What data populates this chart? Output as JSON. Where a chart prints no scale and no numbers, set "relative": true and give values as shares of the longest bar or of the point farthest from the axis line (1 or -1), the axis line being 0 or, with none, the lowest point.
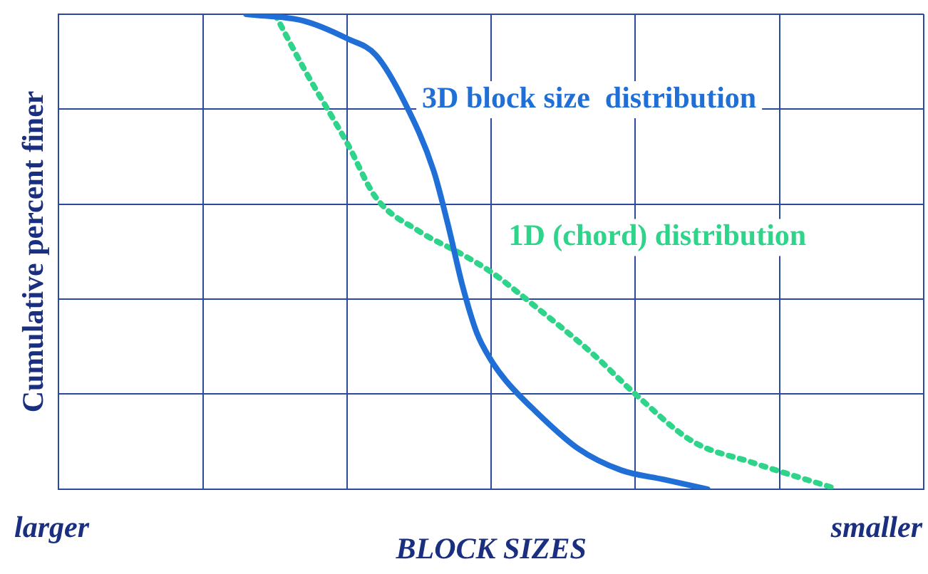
{
  "chart_data": {
    "type": "line",
    "relative": true,
    "xlabel": "BLOCK SIZES",
    "ylabel": "Cumulative percent finer",
    "annotations": [
      "larger",
      "smaller"
    ],
    "grid": true,
    "legend": false,
    "marker": "none",
    "categories": [
      null,
      null,
      null,
      null,
      null,
      null,
      null,
      null,
      null,
      null,
      null,
      null,
      null,
      null,
      null,
      null,
      null,
      null,
      null,
      null,
      null,
      null,
      null,
      null,
      null,
      null,
      null,
      null,
      null,
      null,
      null,
      null,
      null,
      null,
      null,
      null,
      null,
      null,
      null,
      null,
      null,
      null,
      null,
      null,
      null,
      null,
      null,
      null,
      null,
      null,
      null,
      null,
      null,
      null,
      null,
      null,
      null,
      null,
      null,
      null,
      null
    ],
    "series": [
      {
        "name": "3D block size  distribution",
        "color": "#1f6fd6",
        "line_style": "solid",
        "values": [
          null,
          null,
          null,
          null,
          null,
          null,
          null,
          null,
          null,
          null,
          null,
          null,
          null,
          1.0,
          null,
          null,
          null,
          0.986,
          null,
          null,
          0.949,
          null,
          0.914,
          null,
          0.814,
          null,
          0.671,
          0.557,
          0.429,
          0.329,
          0.271,
          0.229,
          null,
          0.166,
          null,
          null,
          0.086,
          null,
          null,
          0.04,
          null,
          null,
          0.02,
          null,
          null,
          0,
          null,
          null,
          null,
          null,
          null,
          null,
          null,
          null,
          null,
          null,
          null,
          null,
          null,
          null,
          null
        ]
      },
      {
        "name": "1D (chord) distribution",
        "color": "#2ed48a",
        "line_style": "dotted",
        "values": [
          null,
          null,
          null,
          null,
          null,
          null,
          null,
          null,
          null,
          null,
          null,
          null,
          null,
          null,
          null,
          1.0,
          null,
          0.886,
          null,
          null,
          0.729,
          null,
          0.614,
          null,
          null,
          0.543,
          null,
          null,
          0.494,
          null,
          0.457,
          null,
          null,
          0.386,
          null,
          null,
          null,
          0.286,
          null,
          null,
          0.2,
          null,
          null,
          null,
          0.1,
          null,
          null,
          null,
          0.057,
          null,
          null,
          null,
          null,
          null,
          0,
          null,
          null,
          null,
          null,
          null,
          null
        ]
      }
    ]
  }
}
